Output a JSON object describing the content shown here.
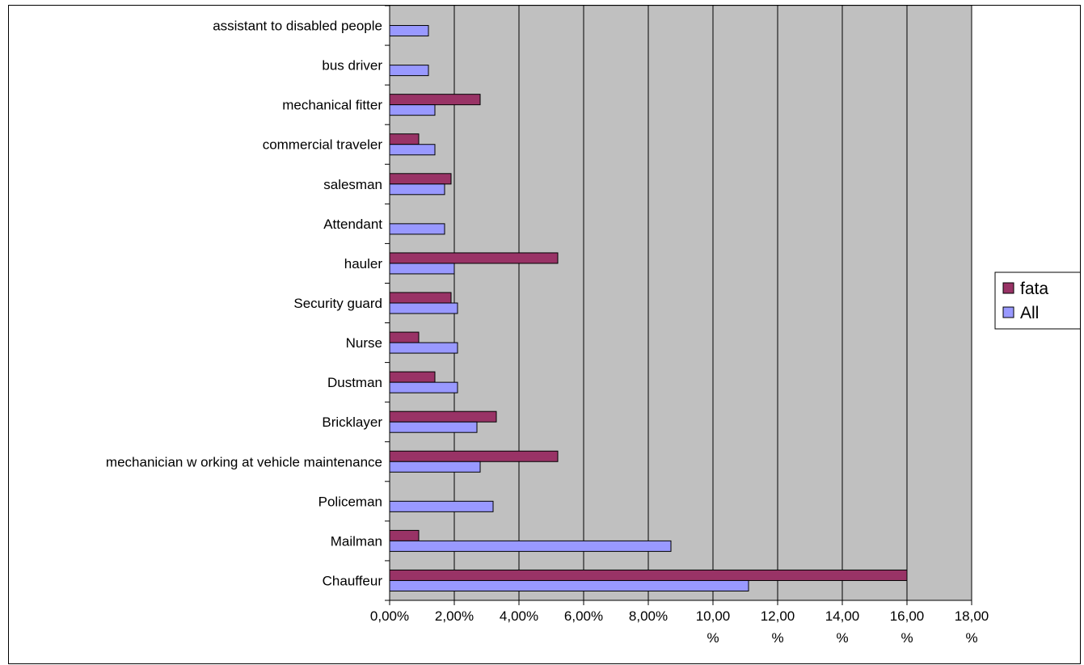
{
  "chart_data": {
    "type": "bar",
    "orientation": "horizontal",
    "title": "",
    "xlabel": "",
    "ylabel": "",
    "xlim": [
      0,
      18
    ],
    "tick_values": [
      0,
      2,
      4,
      6,
      8,
      10,
      12,
      14,
      16,
      18
    ],
    "tick_labels": [
      [
        "0,00%"
      ],
      [
        "2,00%"
      ],
      [
        "4,00%"
      ],
      [
        "6,00%"
      ],
      [
        "8,00%"
      ],
      [
        "10,00",
        "%"
      ],
      [
        "12,00",
        "%"
      ],
      [
        "14,00",
        "%"
      ],
      [
        "16,00",
        "%"
      ],
      [
        "18,00",
        "%"
      ]
    ],
    "grid": true,
    "plot_background": "#c0c0c0",
    "legend_position": "right",
    "categories": [
      "assistant to disabled people",
      "bus driver",
      "mechanical fitter",
      "commercial traveler",
      "salesman",
      "Attendant",
      "hauler",
      "Security guard",
      "Nurse",
      "Dustman",
      "Bricklayer",
      "mechanician w orking at vehicle maintenance",
      "Policeman",
      "Mailman",
      "Chauffeur"
    ],
    "series": [
      {
        "name": "fata",
        "color": "#993366",
        "values": [
          null,
          null,
          2.8,
          0.9,
          1.9,
          null,
          5.2,
          1.9,
          0.9,
          1.4,
          3.3,
          5.2,
          null,
          0.9,
          16.0
        ]
      },
      {
        "name": "All",
        "color": "#9999ff",
        "values": [
          1.2,
          1.2,
          1.4,
          1.4,
          1.7,
          1.7,
          2.0,
          2.1,
          2.1,
          2.1,
          2.7,
          2.8,
          3.2,
          8.7,
          11.1
        ]
      }
    ]
  }
}
